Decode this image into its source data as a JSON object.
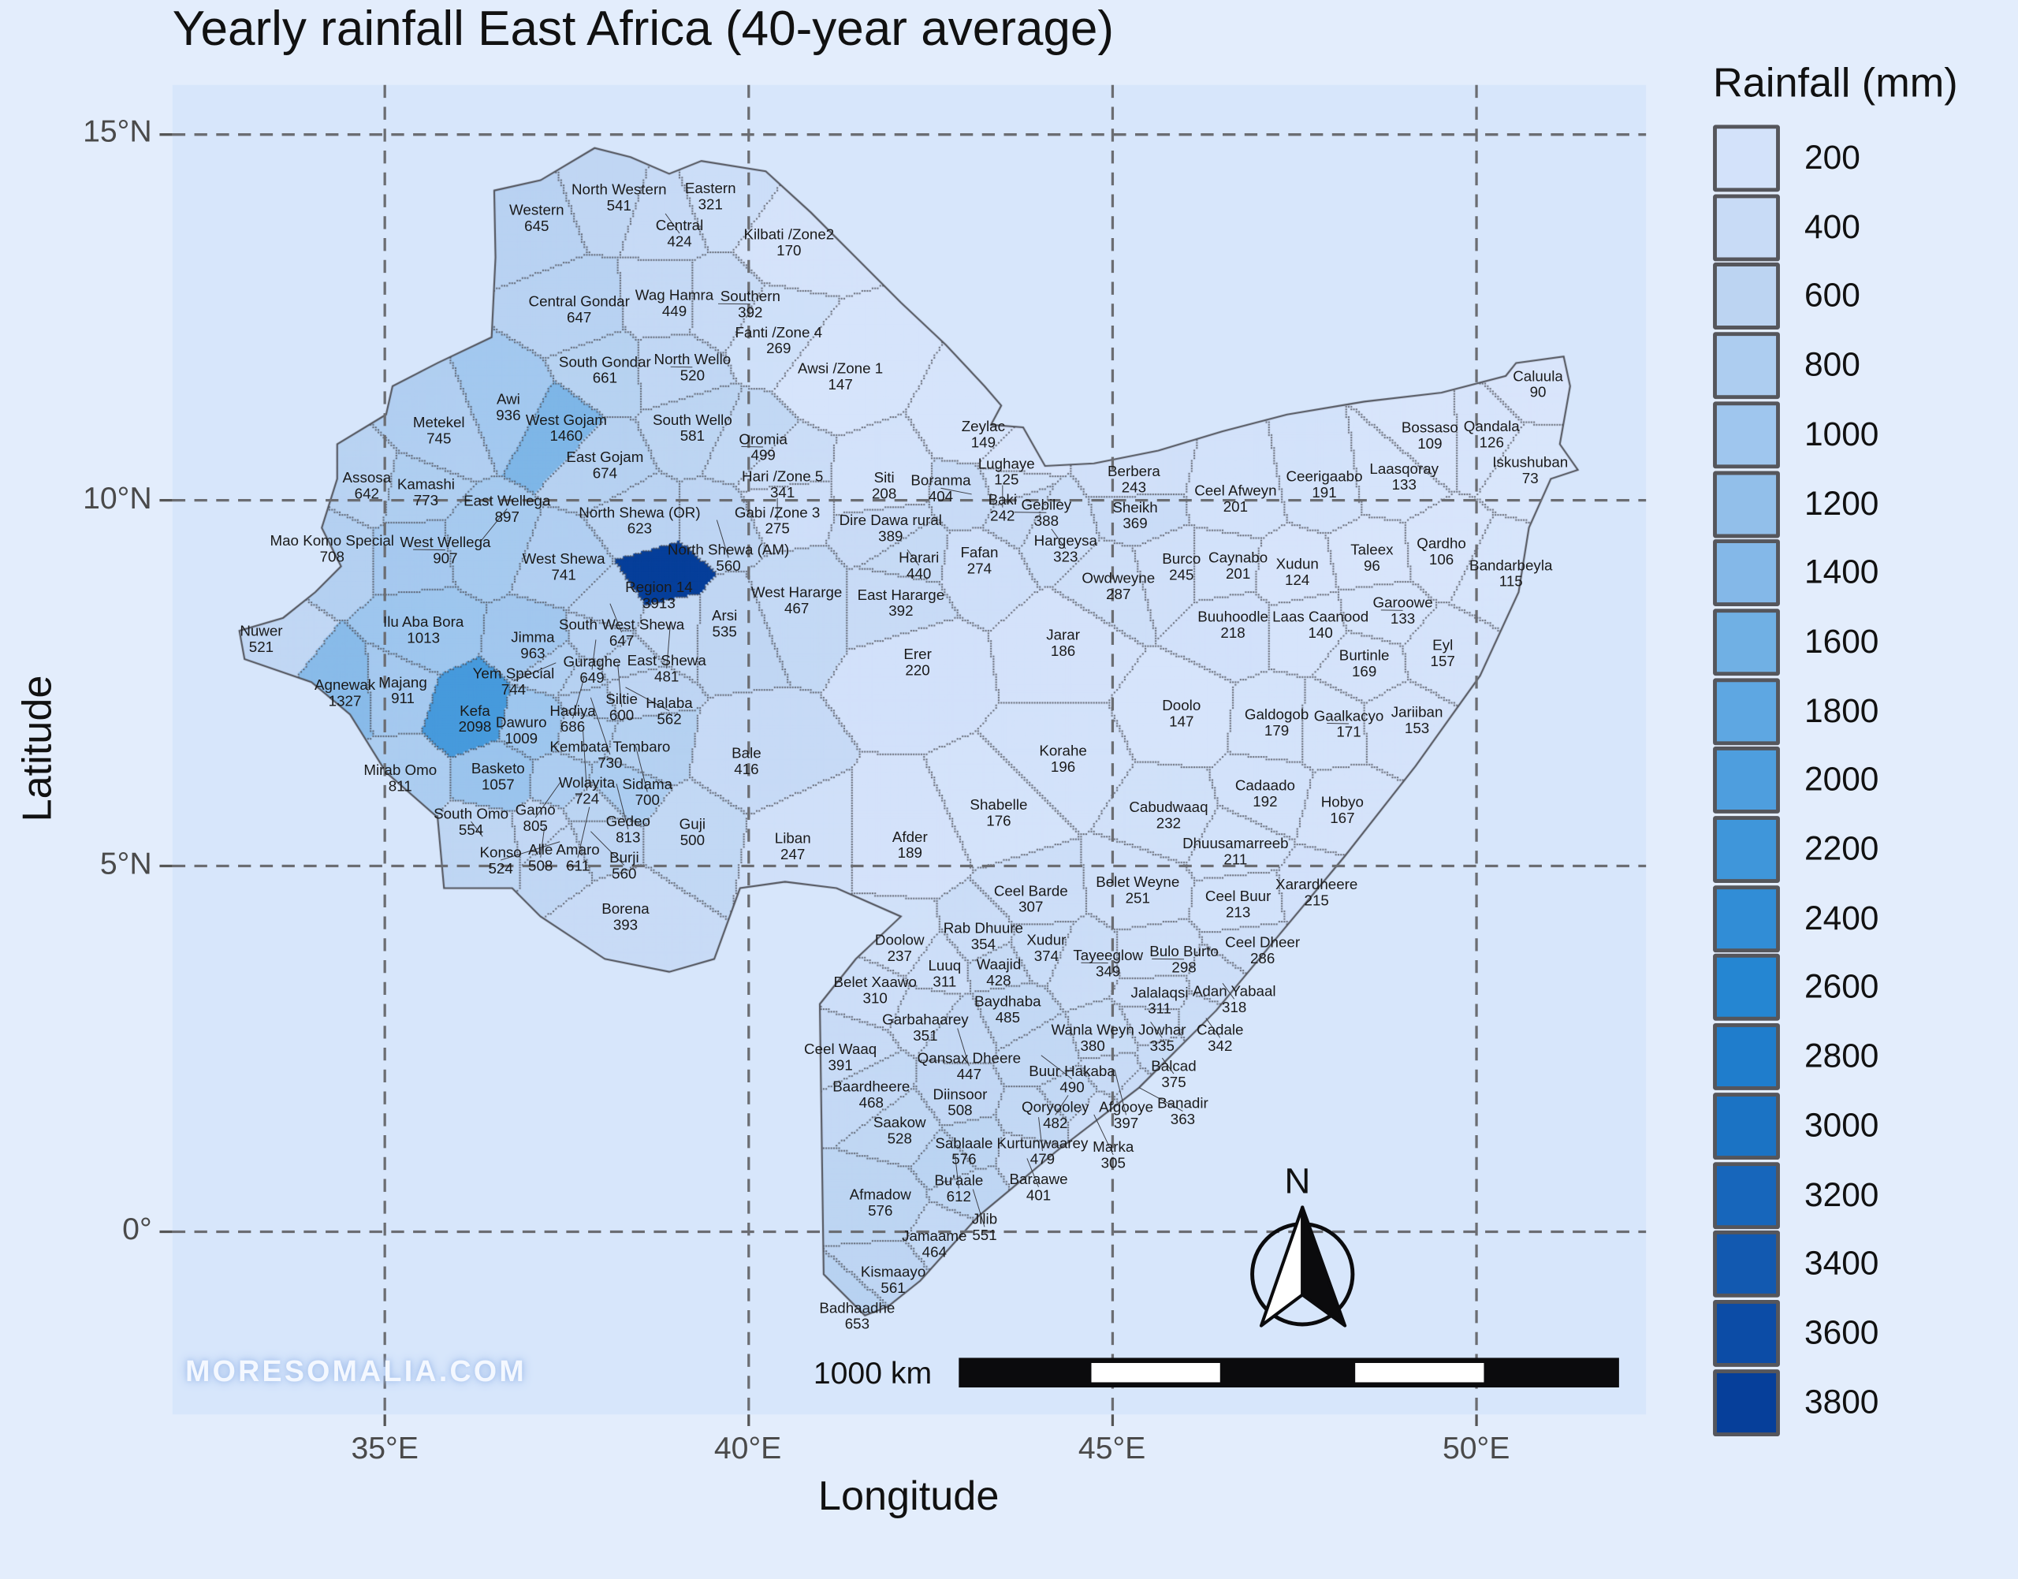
{
  "title": "Yearly rainfall East Africa (40-year average)",
  "axes": {
    "xlabel": "Longitude",
    "ylabel": "Latitude",
    "x_ticks": [
      "35°E",
      "40°E",
      "45°E",
      "50°E"
    ],
    "y_ticks": [
      "15°N",
      "10°N",
      "5°N",
      "0°"
    ],
    "x_tick_values": [
      35,
      40,
      45,
      50
    ],
    "y_tick_values": [
      15,
      10,
      5,
      0
    ]
  },
  "legend": {
    "title": "Rainfall (mm)",
    "items": [
      {
        "label": "200",
        "color": "#d3e2fa"
      },
      {
        "label": "400",
        "color": "#c8dbf6"
      },
      {
        "label": "600",
        "color": "#bcd4f2"
      },
      {
        "label": "800",
        "color": "#adcdf0"
      },
      {
        "label": "1000",
        "color": "#9fc6ee"
      },
      {
        "label": "1200",
        "color": "#92bfea"
      },
      {
        "label": "1400",
        "color": "#84b8e8"
      },
      {
        "label": "1600",
        "color": "#70b0e4"
      },
      {
        "label": "1800",
        "color": "#5ea7e2"
      },
      {
        "label": "2000",
        "color": "#4e9ede"
      },
      {
        "label": "2200",
        "color": "#3f96da"
      },
      {
        "label": "2400",
        "color": "#318dd6"
      },
      {
        "label": "2600",
        "color": "#2586d2"
      },
      {
        "label": "2800",
        "color": "#1f7dcc"
      },
      {
        "label": "3000",
        "color": "#1b73c4"
      },
      {
        "label": "3200",
        "color": "#1766bb"
      },
      {
        "label": "3400",
        "color": "#1259b0"
      },
      {
        "label": "3600",
        "color": "#0c4ca6"
      },
      {
        "label": "3800",
        "color": "#063f9a"
      }
    ]
  },
  "watermark": "MORESOMALIA.COM",
  "scale_bar": {
    "label": "1000 km"
  },
  "north_arrow": {
    "label": "N"
  },
  "chart_data": {
    "type": "choropleth",
    "title": "Yearly rainfall East Africa (40-year average)",
    "xlabel": "Longitude",
    "ylabel": "Latitude",
    "value_unit": "mm",
    "xlim": [
      32.1,
      52.3
    ],
    "ylim": [
      -2.5,
      15.7
    ],
    "grid": true,
    "legend_position": "right",
    "regions": [
      [
        "Western",
        645
      ],
      [
        "North Western",
        541
      ],
      [
        "Central",
        424
      ],
      [
        "Eastern",
        321
      ],
      [
        "Kilbati /Zone2",
        170
      ],
      [
        "Central Gondar",
        647
      ],
      [
        "Wag Hamra",
        449
      ],
      [
        "Southern",
        392
      ],
      [
        "Fanti /Zone 4",
        269
      ],
      [
        "South Gondar",
        661
      ],
      [
        "North Wello",
        520
      ],
      [
        "Awsi /Zone 1",
        147
      ],
      [
        "Metekel",
        745
      ],
      [
        "Awi",
        936
      ],
      [
        "West Gojam",
        1460
      ],
      [
        "South Wello",
        581
      ],
      [
        "East Gojam",
        674
      ],
      [
        "Oromia",
        499
      ],
      [
        "Hari /Zone 5",
        341
      ],
      [
        "Gabi /Zone 3",
        275
      ],
      [
        "Siti",
        208
      ],
      [
        "Assosa",
        642
      ],
      [
        "Kamashi",
        773
      ],
      [
        "North Shewa (OR)",
        623
      ],
      [
        "North Shewa (AM)",
        560
      ],
      [
        "Mao Komo Special",
        708
      ],
      [
        "West Wellega",
        907
      ],
      [
        "East Wellega",
        897
      ],
      [
        "Dire Dawa rural",
        389
      ],
      [
        "Harari",
        440
      ],
      [
        "Zeylac",
        149
      ],
      [
        "Lughaye",
        125
      ],
      [
        "Baki",
        242
      ],
      [
        "Boranma",
        404
      ],
      [
        "Gebiley",
        388
      ],
      [
        "Hargeysa",
        323
      ],
      [
        "Fafan",
        274
      ],
      [
        "West Shewa",
        741
      ],
      [
        "Region 14",
        3913
      ],
      [
        "South West Shewa",
        647
      ],
      [
        "East Shewa",
        481
      ],
      [
        "West Hararge",
        467
      ],
      [
        "East Hararge",
        392
      ],
      [
        "Ilu Aba Bora",
        1013
      ],
      [
        "Jimma",
        963
      ],
      [
        "Guraghe",
        649
      ],
      [
        "Yem Special",
        744
      ],
      [
        "Siltie",
        600
      ],
      [
        "Hadiya",
        686
      ],
      [
        "Halaba",
        562
      ],
      [
        "Kembata Tembaro",
        730
      ],
      [
        "Arsi",
        535
      ],
      [
        "Nuwer",
        521
      ],
      [
        "Agnewak",
        1327
      ],
      [
        "Majang",
        911
      ],
      [
        "Kefa",
        2098
      ],
      [
        "Dawuro",
        1009
      ],
      [
        "Wolayita",
        724
      ],
      [
        "Sidama",
        700
      ],
      [
        "Bale",
        416
      ],
      [
        "Erer",
        220
      ],
      [
        "Mirab Omo",
        811
      ],
      [
        "Basketo",
        1057
      ],
      [
        "Gamo",
        805
      ],
      [
        "Gedeo",
        813
      ],
      [
        "Amaro",
        611
      ],
      [
        "Alle",
        508
      ],
      [
        "Konso",
        524
      ],
      [
        "Burji",
        560
      ],
      [
        "South Omo",
        554
      ],
      [
        "Guji",
        500
      ],
      [
        "Liban",
        247
      ],
      [
        "Afder",
        189
      ],
      [
        "Borena",
        393
      ],
      [
        "Jarar",
        186
      ],
      [
        "Korahe",
        196
      ],
      [
        "Shabelle",
        176
      ],
      [
        "Doolo",
        147
      ],
      [
        "Berbera",
        243
      ],
      [
        "Sheikh",
        369
      ],
      [
        "Ceel Afweyn",
        201
      ],
      [
        "Ceerigaabo",
        191
      ],
      [
        "Laasqoray",
        133
      ],
      [
        "Bossaso",
        109
      ],
      [
        "Qandala",
        126
      ],
      [
        "Caluula",
        90
      ],
      [
        "Iskushuban",
        73
      ],
      [
        "Owdweyne",
        287
      ],
      [
        "Burco",
        245
      ],
      [
        "Caynabo",
        201
      ],
      [
        "Xudun",
        124
      ],
      [
        "Taleex",
        96
      ],
      [
        "Qardho",
        106
      ],
      [
        "Bandarbeyla",
        115
      ],
      [
        "Buuhoodle",
        218
      ],
      [
        "Laas Caanood",
        140
      ],
      [
        "Garoowe",
        133
      ],
      [
        "Burtinle",
        169
      ],
      [
        "Eyl",
        157
      ],
      [
        "Galdogob",
        179
      ],
      [
        "Gaalkacyo",
        171
      ],
      [
        "Jariiban",
        153
      ],
      [
        "Cadaado",
        192
      ],
      [
        "Hobyo",
        167
      ],
      [
        "Cabudwaaq",
        232
      ],
      [
        "Dhuusamarreeb",
        211
      ],
      [
        "Belet Weyne",
        251
      ],
      [
        "Xarardheere",
        215
      ],
      [
        "Ceel Barde",
        307
      ],
      [
        "Ceel Buur",
        213
      ],
      [
        "Rab Dhuure",
        354
      ],
      [
        "Xudur",
        374
      ],
      [
        "Tayeeglow",
        349
      ],
      [
        "Doolow",
        237
      ],
      [
        "Luuq",
        311
      ],
      [
        "Waajid",
        428
      ],
      [
        "Bulo Burto",
        298
      ],
      [
        "Ceel Dheer",
        286
      ],
      [
        "Belet Xaawo",
        310
      ],
      [
        "Jalalaqsi",
        311
      ],
      [
        "Adan Yabaal",
        318
      ],
      [
        "Garbahaarey",
        351
      ],
      [
        "Baydhaba",
        485
      ],
      [
        "Qansax Dheere",
        447
      ],
      [
        "Jowhar",
        335
      ],
      [
        "Cadale",
        342
      ],
      [
        "Wanla Weyn",
        380
      ],
      [
        "Ceel Waaq",
        391
      ],
      [
        "Buur Hakaba",
        490
      ],
      [
        "Balcad",
        375
      ],
      [
        "Afgooye",
        397
      ],
      [
        "Banadir",
        363
      ],
      [
        "Baardheere",
        468
      ],
      [
        "Diinsoor",
        508
      ],
      [
        "Qoryooley",
        482
      ],
      [
        "Kurtunwaarey",
        479
      ],
      [
        "Marka",
        305
      ],
      [
        "Saakow",
        528
      ],
      [
        "Sablaale",
        576
      ],
      [
        "Bu'aale",
        612
      ],
      [
        "Baraawe",
        401
      ],
      [
        "Jilib",
        551
      ],
      [
        "Afmadow",
        576
      ],
      [
        "Jamaame",
        464
      ],
      [
        "Kismaayo",
        561
      ],
      [
        "Badhaadhe",
        653
      ]
    ]
  }
}
